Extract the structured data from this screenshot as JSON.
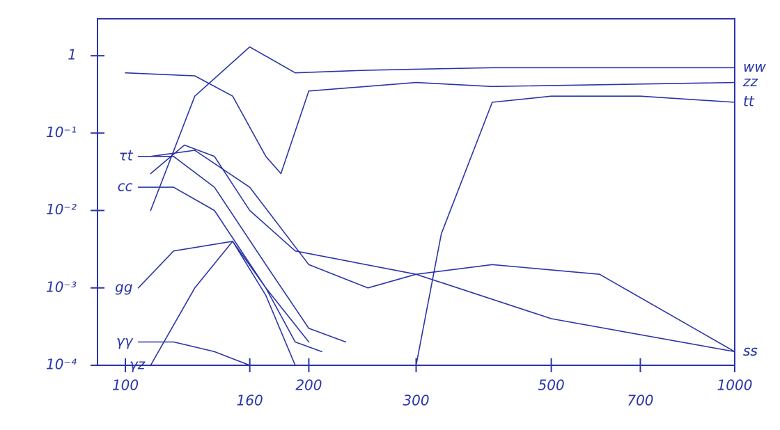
{
  "chart_data": {
    "type": "line",
    "ylog": true,
    "xlog": true,
    "color": "#2a35a8",
    "xlim": [
      90,
      1000
    ],
    "ylim": [
      0.0001,
      3
    ],
    "xticks": [
      100,
      160,
      200,
      300,
      500,
      700,
      1000
    ],
    "yticks": [
      1,
      {
        "value": 0.1,
        "label": "10⁻¹"
      },
      {
        "value": 0.01,
        "label": "10⁻²"
      },
      {
        "value": 0.001,
        "label": "10⁻³"
      },
      {
        "value": 0.0001,
        "label": "10⁻⁴"
      }
    ],
    "series": [
      {
        "name": "ww",
        "x": [
          110,
          130,
          160,
          190,
          250,
          400,
          700,
          1000
        ],
        "values": [
          0.01,
          0.3,
          1.3,
          0.6,
          0.65,
          0.7,
          0.7,
          0.7
        ]
      },
      {
        "name": "zz",
        "x": [
          100,
          130,
          150,
          170,
          180,
          200,
          300,
          400,
          1000
        ],
        "values": [
          0.6,
          0.55,
          0.3,
          0.05,
          0.03,
          0.35,
          0.45,
          0.4,
          0.45
        ]
      },
      {
        "name": "tt",
        "x": [
          300,
          330,
          400,
          500,
          700,
          1000
        ],
        "values": [
          0.0001,
          0.005,
          0.25,
          0.3,
          0.3,
          0.25
        ]
      },
      {
        "name": "ss",
        "x": [
          110,
          125,
          140,
          160,
          190,
          300,
          500,
          1000
        ],
        "values": [
          0.03,
          0.07,
          0.05,
          0.01,
          0.003,
          0.0015,
          0.0004,
          0.00015
        ]
      },
      {
        "name": "ss",
        "x": [
          110,
          130,
          160,
          200,
          250,
          300,
          400,
          600,
          1000
        ],
        "values": [
          0.05,
          0.06,
          0.02,
          0.002,
          0.001,
          0.0015,
          0.002,
          0.0015,
          0.00015
        ]
      },
      {
        "name": "τt",
        "x": [
          105,
          120,
          140,
          170,
          200,
          230
        ],
        "values": [
          0.05,
          0.05,
          0.02,
          0.002,
          0.0003,
          0.0002
        ]
      },
      {
        "name": "cc",
        "x": [
          105,
          120,
          140,
          170,
          190,
          210
        ],
        "values": [
          0.02,
          0.02,
          0.01,
          0.001,
          0.0002,
          0.00015
        ]
      },
      {
        "name": "gg",
        "x": [
          105,
          120,
          150,
          170,
          200
        ],
        "values": [
          0.001,
          0.003,
          0.004,
          0.001,
          0.0002
        ]
      },
      {
        "name": "γz",
        "x": [
          110,
          130,
          150,
          170,
          190
        ],
        "values": [
          0.0001,
          0.001,
          0.004,
          0.0008,
          0.0001
        ]
      },
      {
        "name": "γγ",
        "x": [
          105,
          120,
          140,
          160
        ],
        "values": [
          0.0002,
          0.0002,
          0.00015,
          0.0001
        ]
      }
    ]
  }
}
